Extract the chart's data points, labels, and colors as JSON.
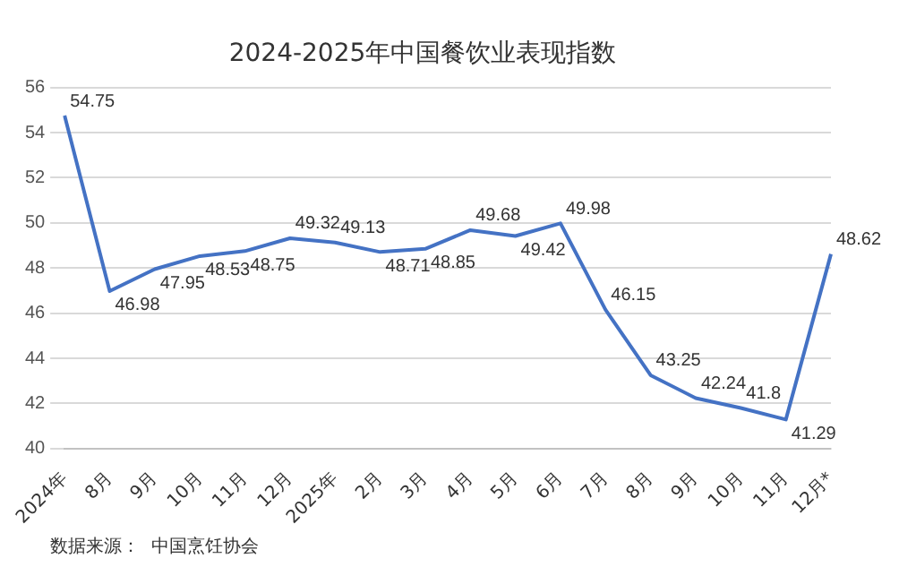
{
  "chart_data": {
    "type": "line",
    "title": "2024-2025年中国餐饮业表现指数",
    "categories": [
      "2024年",
      "8月",
      "9月",
      "10月",
      "11月",
      "12月",
      "2025年",
      "2月",
      "3月",
      "4月",
      "5月",
      "6月",
      "7月",
      "8月",
      "9月",
      "10月",
      "11月",
      "12月*"
    ],
    "series": [
      {
        "color": "#4472c4",
        "values": [
          54.75,
          46.98,
          47.95,
          48.53,
          48.75,
          49.32,
          49.13,
          48.71,
          48.85,
          49.68,
          49.42,
          49.98,
          46.15,
          43.25,
          42.24,
          41.8,
          41.29,
          48.62
        ]
      }
    ],
    "ylim": [
      40,
      56
    ],
    "yticks": [
      40,
      42,
      44,
      46,
      48,
      50,
      52,
      54,
      56
    ],
    "grid": "y",
    "legend": false,
    "marker": "none",
    "line_style": "solid",
    "data_labels": true,
    "annotations": [
      "数据来源：  中国烹饪协会"
    ]
  }
}
